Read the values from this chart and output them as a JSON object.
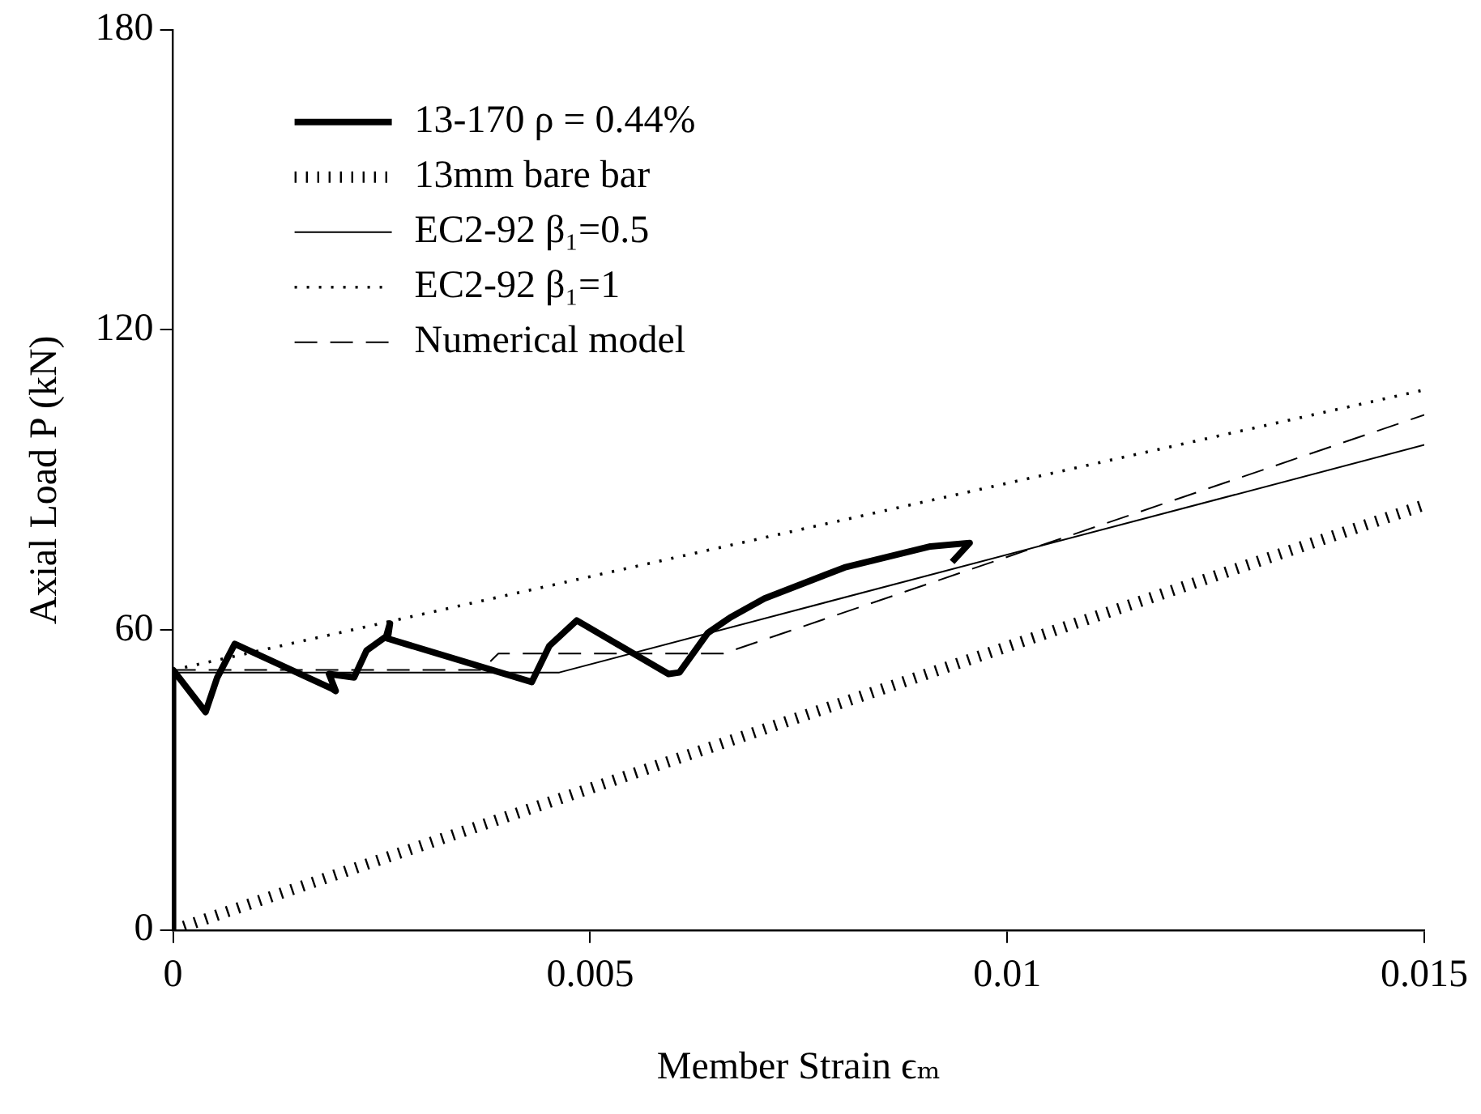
{
  "chart_data": {
    "type": "line",
    "xlabel": "Member Strain ϵₘ",
    "ylabel": "Axial Load P (kN)",
    "xlim": [
      0,
      0.015
    ],
    "xticks": [
      0,
      0.005,
      0.01,
      0.015
    ],
    "ylim": [
      0,
      180
    ],
    "yticks": [
      0,
      60,
      120,
      180
    ],
    "grid": false,
    "legend": "top left",
    "marker": "none",
    "series": [
      {
        "name": "13-170 ρ = 0.44%",
        "color": "#000000",
        "line_style": "solid",
        "x": [
          0,
          0,
          0.00039,
          0.00053,
          0.00074,
          0.0019,
          0.00195,
          0.00187,
          0.00217,
          0.00232,
          0.00258,
          0.0026,
          0.00255,
          0.0043,
          0.00451,
          0.00484,
          0.00594,
          0.00607,
          0.00641,
          0.00668,
          0.00709,
          0.00805,
          0.00908,
          0.00955,
          0.00934
        ],
        "values": [
          0,
          52,
          43.6,
          50.5,
          57.2,
          48.3,
          47.8,
          51.2,
          50.5,
          55.9,
          59,
          61.3,
          58.4,
          49.6,
          56.8,
          61.9,
          51.2,
          51.5,
          59.4,
          62.5,
          66.3,
          72.5,
          76.7,
          77.4,
          73.6
        ]
      },
      {
        "name": "13mm bare bar",
        "color": "#000000",
        "line_style": "dotted",
        "x": [
          0,
          0.015
        ],
        "values": [
          0,
          85
        ]
      },
      {
        "name": "EC2-92 β₁=0.5",
        "color": "#000000",
        "line_style": "solid",
        "x": [
          0,
          0.00463,
          0.015
        ],
        "values": [
          51.5,
          51.5,
          97
        ]
      },
      {
        "name": "EC2-92 β₁=1",
        "color": "#000000",
        "line_style": "dotted",
        "x": [
          0,
          0.015
        ],
        "values": [
          52,
          108
        ]
      },
      {
        "name": "Numerical model",
        "color": "#000000",
        "line_style": "dashed",
        "x": [
          0,
          0.0037,
          0.0039,
          0.0066,
          0.015
        ],
        "values": [
          52,
          52,
          55.3,
          55.3,
          103
        ]
      }
    ]
  }
}
